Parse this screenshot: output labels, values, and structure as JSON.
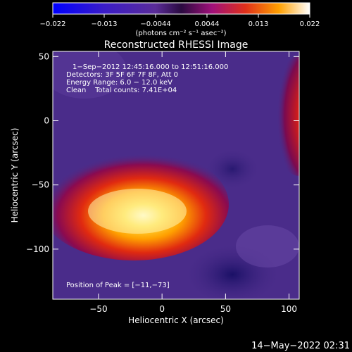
{
  "chart_data": {
    "type": "heatmap",
    "title": "Reconstructed RHESSI Image",
    "xlabel": "Heliocentric X (arcsec)",
    "ylabel": "Heliocentric Y (arcsec)",
    "xlim": [
      -86,
      108
    ],
    "ylim": [
      -139,
      54
    ],
    "xticks": [
      -50,
      0,
      50,
      100
    ],
    "yticks": [
      50,
      0,
      -50,
      -100
    ],
    "colorbar": {
      "ticks": [
        "−0.022",
        "−0.013",
        "−0.0044",
        "0.0044",
        "0.013",
        "0.022"
      ],
      "range": [
        -0.022,
        0.022
      ],
      "unit_label": "(photons cm⁻² s⁻¹ asec⁻²)",
      "colormap": "blue-purple-red-yellow-white"
    },
    "annotations": [
      "1−Sep−2012 12:45:16.000 to 12:51:16.000",
      "Detectors: 3F 5F 6F 7F 8F, Att 0",
      "Energy Range: 6.0 − 12.0 keV",
      "Clean    Total counts: 7.41E+04"
    ],
    "peak_label": "Position of Peak = [−11,−73]",
    "peak": [
      -11,
      -73
    ]
  },
  "timestamp": "14−May−2022 02:31",
  "colors": {
    "background": "#000000",
    "purple": "#4a2c8a",
    "dark_purple": "#2a1c6a",
    "red": "#d0201a",
    "yellow": "#ffd000",
    "white": "#ffffff"
  }
}
